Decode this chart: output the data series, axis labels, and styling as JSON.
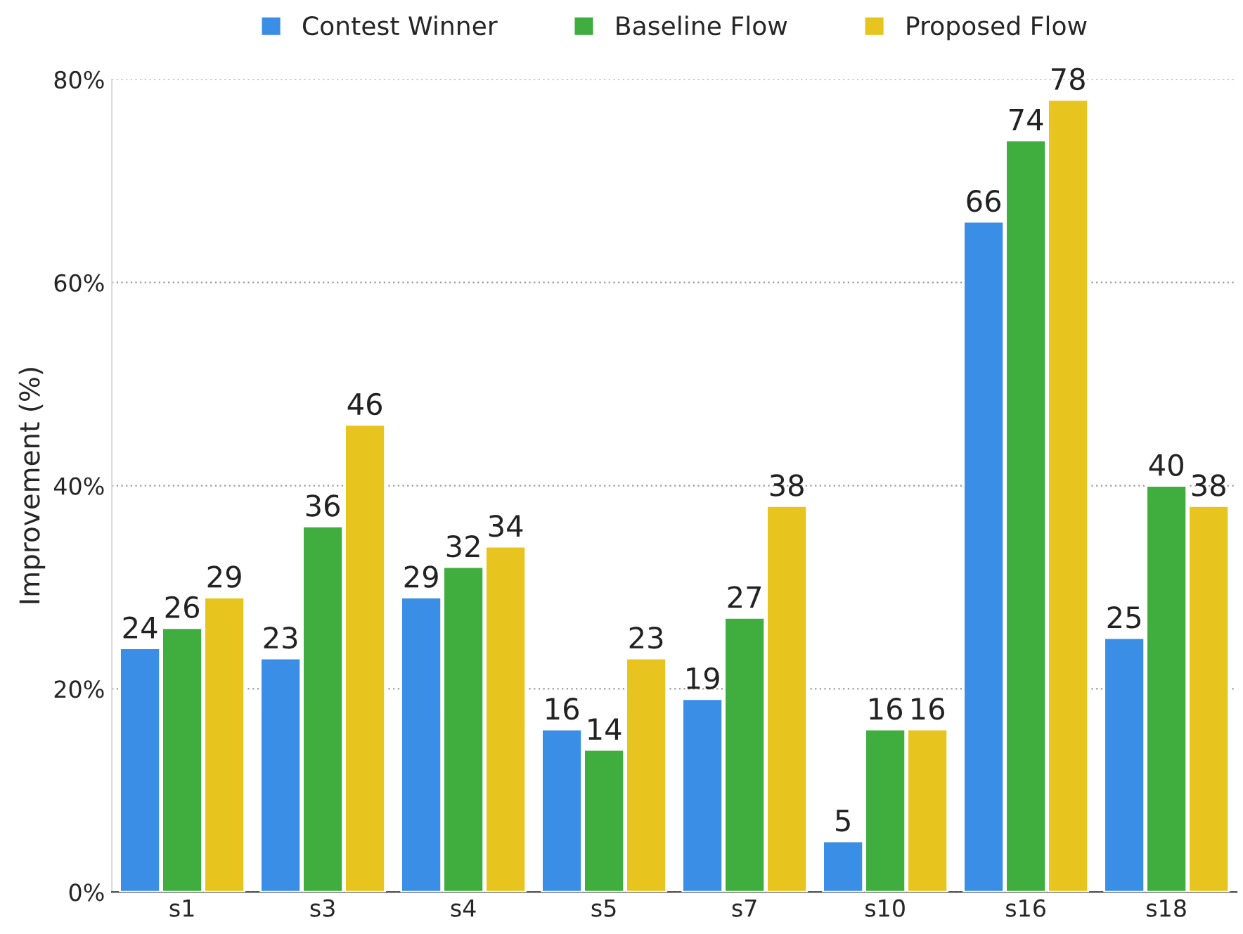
{
  "chart_data": {
    "type": "bar",
    "ylabel": "Improvement (%)",
    "categories": [
      "s1",
      "s3",
      "s4",
      "s5",
      "s7",
      "s10",
      "s16",
      "s18"
    ],
    "series": [
      {
        "name": "Contest Winner",
        "color": "#3a8ee6",
        "values": [
          24,
          23,
          29,
          16,
          19,
          5,
          66,
          25
        ]
      },
      {
        "name": "Baseline Flow",
        "color": "#3fae3f",
        "values": [
          26,
          36,
          32,
          14,
          27,
          16,
          74,
          40
        ]
      },
      {
        "name": "Proposed Flow",
        "color": "#e8c41f",
        "values": [
          29,
          46,
          34,
          23,
          38,
          16,
          78,
          38
        ]
      }
    ],
    "ylim": [
      0,
      80
    ],
    "yticks": [
      {
        "value": 0,
        "label": "0%"
      },
      {
        "value": 20,
        "label": "20%"
      },
      {
        "value": 40,
        "label": "40%"
      },
      {
        "value": 60,
        "label": "60%"
      },
      {
        "value": 80,
        "label": "80%"
      }
    ],
    "grid": "y",
    "legend": "top",
    "data_labels": true
  }
}
